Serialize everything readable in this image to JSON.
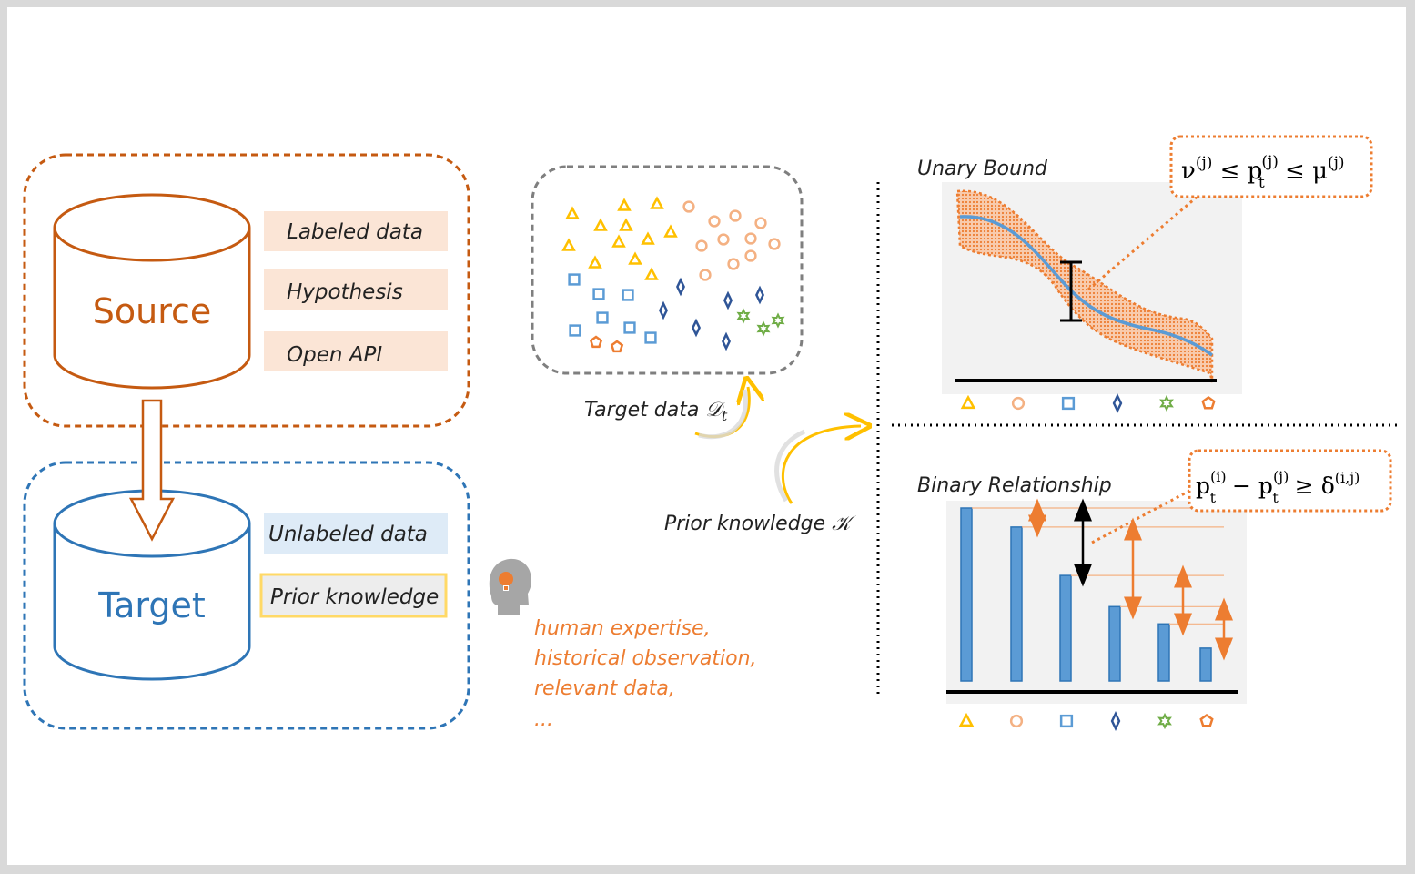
{
  "source": {
    "label": "Source",
    "items": [
      "Labeled data",
      "Hypothesis",
      "Open API"
    ],
    "color": "#c55a11",
    "item_bg": "#fbe5d6"
  },
  "target": {
    "label": "Target",
    "items": [
      "Unlabeled data",
      "Prior knowledge"
    ],
    "color": "#2e75b6",
    "item_bg": "#deebf7"
  },
  "target_data": {
    "label": "Target data",
    "symbol": "𝒟",
    "subscript": "t"
  },
  "prior": {
    "label": "Prior knowledge",
    "symbol": "𝒦"
  },
  "knowledge_sources": {
    "lines": [
      "human expertise,",
      "historical observation,",
      "relevant data,",
      "..."
    ],
    "color": "#ed7d31"
  },
  "unary": {
    "title": "Unary Bound",
    "formula": {
      "nu": "ν",
      "sup_j": "(j)",
      "leq": "≤",
      "p": "p",
      "sub_t": "t",
      "mu": "μ"
    }
  },
  "binary": {
    "title": "Binary Relationship",
    "formula": {
      "p": "p",
      "sub_t": "t",
      "sup_i": "(i)",
      "sup_j": "(j)",
      "minus": "−",
      "geq": "≥",
      "delta": "δ",
      "sup_ij": "(i,j)"
    },
    "bar_values": [
      1.0,
      0.89,
      0.61,
      0.43,
      0.33,
      0.19
    ]
  },
  "class_symbols": [
    "triangle",
    "circle",
    "square",
    "diamond",
    "star",
    "pentagon"
  ],
  "class_colors": [
    "#ffc000",
    "#f4b183",
    "#5b9bd5",
    "#2f5597",
    "#70ad47",
    "#ed7d31"
  ]
}
